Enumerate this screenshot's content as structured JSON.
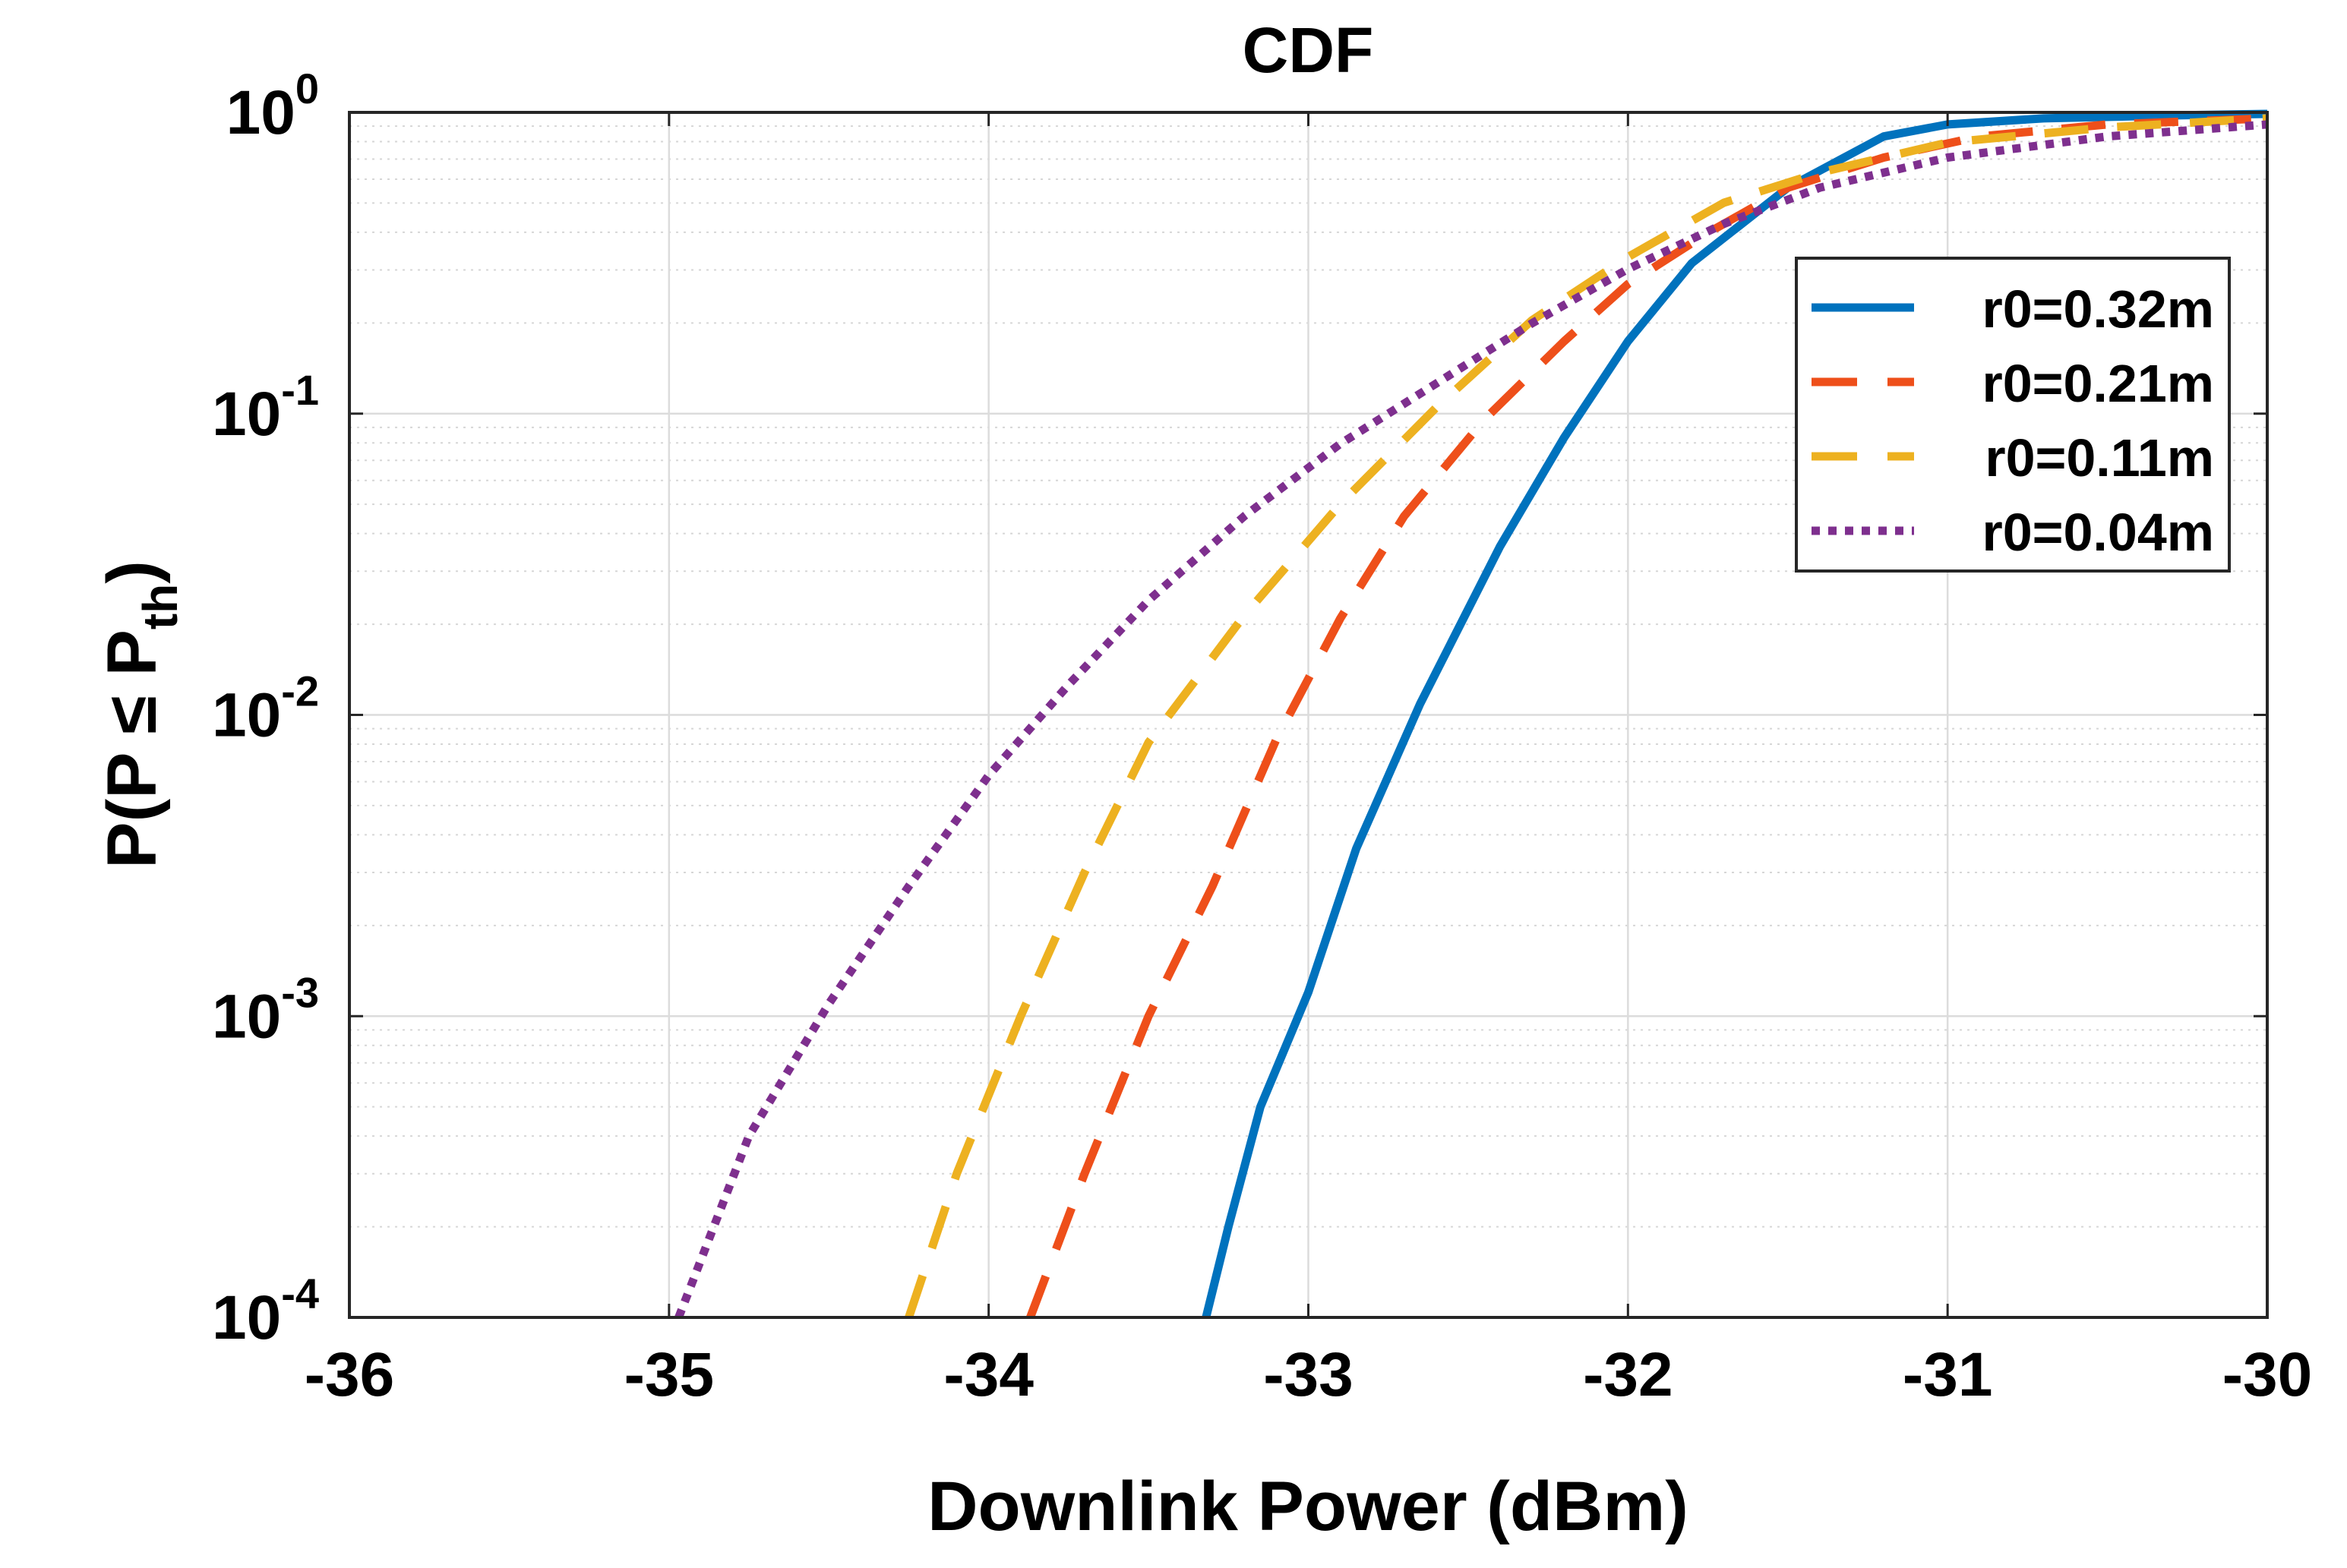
{
  "chart_data": {
    "type": "line",
    "title": "CDF",
    "xlabel": "Downlink Power (dBm)",
    "ylabel_prefix": "P(P ",
    "ylabel_symbol": "≤",
    "ylabel_var": " P",
    "ylabel_subscript": "th",
    "ylabel_suffix": ")",
    "xlim": [
      -36,
      -30
    ],
    "ylim": [
      0.0001,
      1
    ],
    "yscale": "log",
    "grid": true,
    "minor_grid": true,
    "legend_position": "top-right",
    "x_ticks": [
      -36,
      -35,
      -34,
      -33,
      -32,
      -31,
      -30
    ],
    "x_tick_labels": [
      "-36",
      "-35",
      "-34",
      "-33",
      "-32",
      "-31",
      "-30"
    ],
    "y_ticks": [
      {
        "value": 1,
        "base": "10",
        "exp": "0"
      },
      {
        "value": 0.1,
        "base": "10",
        "exp": "-1"
      },
      {
        "value": 0.01,
        "base": "10",
        "exp": "-2"
      },
      {
        "value": 0.001,
        "base": "10",
        "exp": "-3"
      },
      {
        "value": 0.0001,
        "base": "10",
        "exp": "-4"
      }
    ],
    "series": [
      {
        "name": "r0=0.32m",
        "color": "#0072BD",
        "style": "solid",
        "x": [
          -33.32,
          -33.25,
          -33.15,
          -33.0,
          -32.85,
          -32.65,
          -32.4,
          -32.2,
          -32.0,
          -31.8,
          -31.5,
          -31.2,
          -31.0,
          -30.7,
          -30.3,
          -30.0
        ],
        "y": [
          0.0001,
          0.0002,
          0.0005,
          0.0012,
          0.0036,
          0.0109,
          0.0363,
          0.0832,
          0.1738,
          0.3162,
          0.5623,
          0.8318,
          0.912,
          0.955,
          0.9772,
          0.9886
        ]
      },
      {
        "name": "r0=0.21m",
        "color": "#EE4F1A",
        "style": "dashed",
        "x": [
          -33.87,
          -33.7,
          -33.5,
          -33.3,
          -33.1,
          -32.9,
          -32.7,
          -32.45,
          -32.2,
          -32.0,
          -31.75,
          -31.5,
          -31.2,
          -30.9,
          -30.5,
          -30.0
        ],
        "y": [
          0.0001,
          0.0003,
          0.001,
          0.0027,
          0.0083,
          0.0209,
          0.0457,
          0.0955,
          0.1738,
          0.2692,
          0.3981,
          0.5623,
          0.7079,
          0.8318,
          0.912,
          0.955
        ]
      },
      {
        "name": "r0=0.11m",
        "color": "#EDB120",
        "style": "dashed",
        "x": [
          -34.25,
          -34.1,
          -33.9,
          -33.7,
          -33.5,
          -33.2,
          -32.9,
          -32.6,
          -32.3,
          -32.0,
          -31.7,
          -31.4,
          -31.0,
          -30.5,
          -30.0
        ],
        "y": [
          0.0001,
          0.0003,
          0.001,
          0.003,
          0.0081,
          0.0214,
          0.0501,
          0.1047,
          0.2042,
          0.3311,
          0.5012,
          0.631,
          0.7943,
          0.8913,
          0.955
        ]
      },
      {
        "name": "r0=0.04m",
        "color": "#7E2F8E",
        "style": "dotted",
        "x": [
          -34.97,
          -34.75,
          -34.5,
          -34.25,
          -34.0,
          -33.75,
          -33.5,
          -33.2,
          -32.9,
          -32.6,
          -32.3,
          -32.0,
          -31.7,
          -31.4,
          -31.0,
          -30.5,
          -30.0
        ],
        "y": [
          0.0001,
          0.0004,
          0.0011,
          0.0027,
          0.0063,
          0.0126,
          0.024,
          0.0457,
          0.0794,
          0.1259,
          0.1995,
          0.302,
          0.4266,
          0.5623,
          0.7079,
          0.8318,
          0.912
        ]
      }
    ]
  }
}
